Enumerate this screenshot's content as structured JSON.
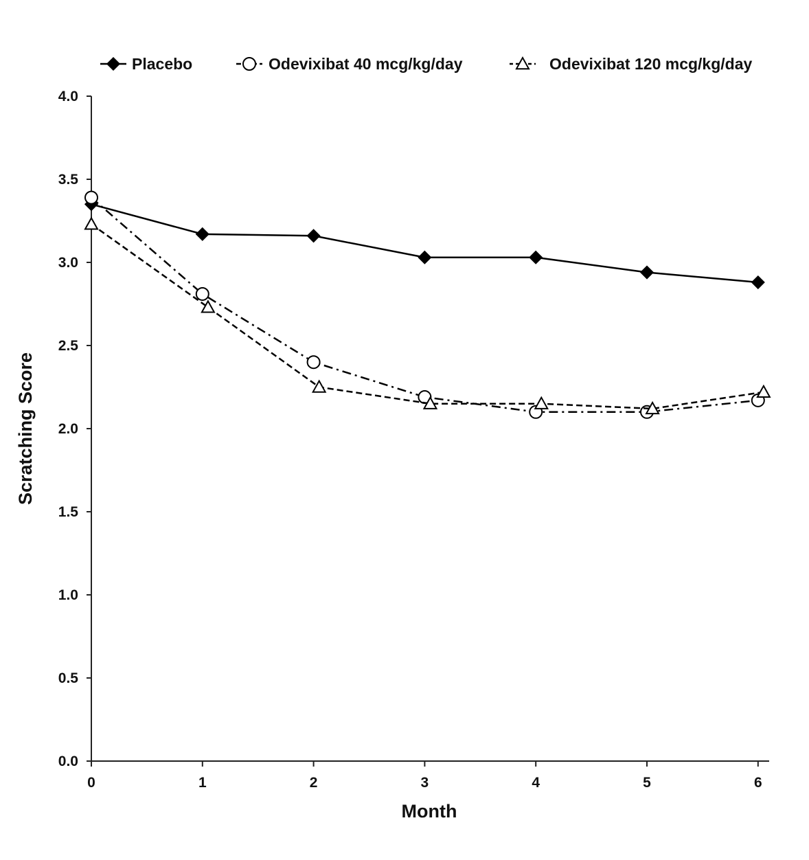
{
  "chart_data": {
    "type": "line",
    "title": "",
    "xlabel": "Month",
    "ylabel": "Scratching Score",
    "x": [
      0,
      1,
      2,
      3,
      4,
      5,
      6
    ],
    "x_ticks": [
      "0",
      "1",
      "2",
      "3",
      "4",
      "5",
      "6"
    ],
    "y_ticks": [
      "0.0",
      "0.5",
      "1.0",
      "1.5",
      "2.0",
      "2.5",
      "3.0",
      "3.5",
      "4.0"
    ],
    "xlim": [
      0,
      6.1
    ],
    "ylim": [
      0,
      4
    ],
    "grid": false,
    "legend_position": "top",
    "series": [
      {
        "name": "Placebo",
        "marker": "filled-diamond",
        "line_style": "solid",
        "color": "#000000",
        "x": [
          0,
          1,
          2,
          3,
          4,
          5,
          6
        ],
        "values": [
          3.35,
          3.17,
          3.16,
          3.03,
          3.03,
          2.94,
          2.88
        ]
      },
      {
        "name": "Odevixibat 40 mcg/kg/day",
        "marker": "open-circle",
        "line_style": "dash-dot",
        "color": "#000000",
        "x": [
          0,
          1,
          2,
          3,
          4,
          5,
          6
        ],
        "values": [
          3.39,
          2.81,
          2.4,
          2.19,
          2.1,
          2.1,
          2.17
        ]
      },
      {
        "name": "Odevixibat 120 mcg/kg/day",
        "marker": "open-triangle",
        "line_style": "dashed",
        "color": "#000000",
        "x": [
          0,
          1.05,
          2.05,
          3.05,
          4.05,
          5.05,
          6.05
        ],
        "values": [
          3.23,
          2.73,
          2.25,
          2.15,
          2.15,
          2.12,
          2.22
        ]
      }
    ]
  }
}
